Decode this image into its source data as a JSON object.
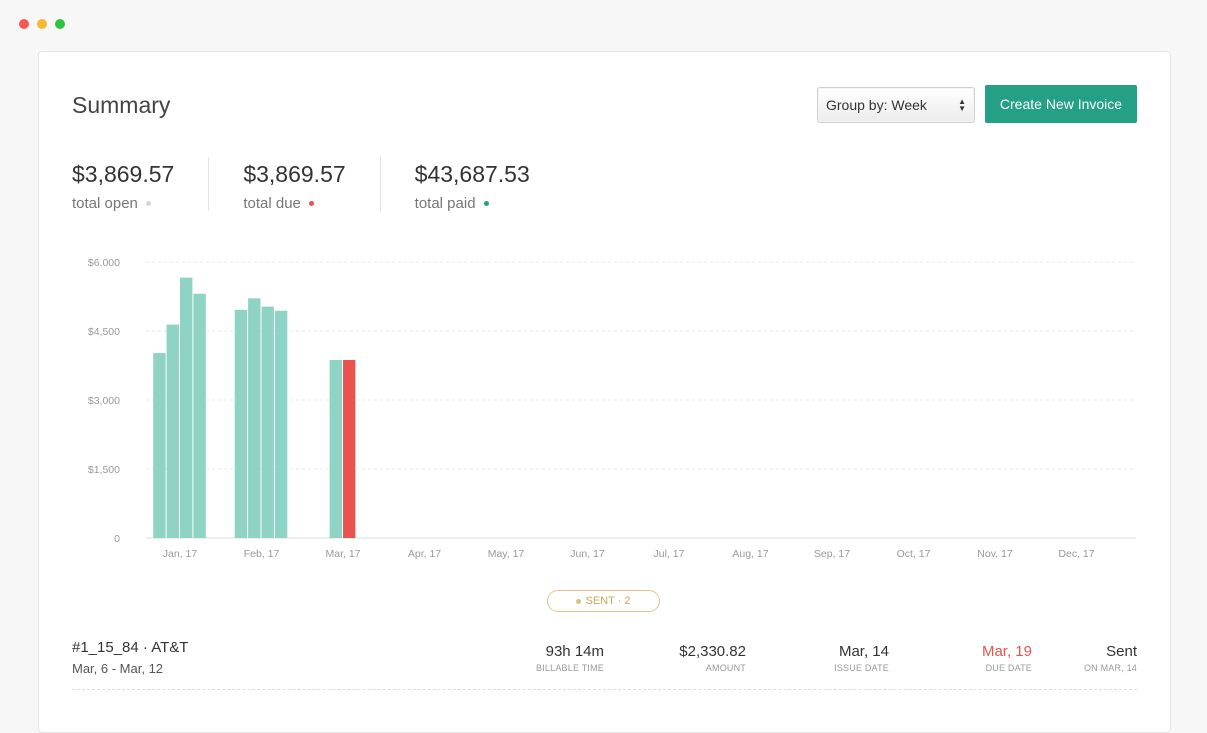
{
  "window": {
    "controls": [
      {
        "name": "close",
        "color": "#f25a4f"
      },
      {
        "name": "minimize",
        "color": "#f5b82e"
      },
      {
        "name": "maximize",
        "color": "#2dc53e"
      }
    ]
  },
  "header": {
    "title": "Summary",
    "group_by": "Group by: Week",
    "create_button": "Create New Invoice"
  },
  "stats": [
    {
      "amount": "$3,869.57",
      "label": "total open",
      "dot_color": "#d6d6d6"
    },
    {
      "amount": "$3,869.57",
      "label": "total due",
      "dot_color": "#e8534f"
    },
    {
      "amount": "$43,687.53",
      "label": "total paid",
      "dot_color": "#23a085"
    }
  ],
  "chart_data": {
    "type": "bar",
    "y_ticks": [
      "$6,000",
      "$4,500",
      "$3,000",
      "$1,500",
      "0"
    ],
    "ylim": [
      0,
      6000
    ],
    "x_ticks": [
      "Jan, 17",
      "Feb, 17",
      "Mar, 17",
      "Apr, 17",
      "May, 17",
      "Jun, 17",
      "Jul, 17",
      "Aug, 17",
      "Sep, 17",
      "Oct, 17",
      "Nov, 17",
      "Dec, 17"
    ],
    "grid": true,
    "colors": {
      "paid": "#8ed3c3",
      "due": "#e8534f"
    },
    "bars": [
      {
        "month": "Jan, 17",
        "week": 1,
        "value": 4020,
        "status": "paid"
      },
      {
        "month": "Jan, 17",
        "week": 2,
        "value": 4640,
        "status": "paid"
      },
      {
        "month": "Jan, 17",
        "week": 3,
        "value": 5660,
        "status": "paid"
      },
      {
        "month": "Jan, 17",
        "week": 4,
        "value": 5310,
        "status": "paid"
      },
      {
        "month": "Feb, 17",
        "week": 1,
        "value": 4960,
        "status": "paid"
      },
      {
        "month": "Feb, 17",
        "week": 2,
        "value": 5210,
        "status": "paid"
      },
      {
        "month": "Feb, 17",
        "week": 3,
        "value": 5030,
        "status": "paid"
      },
      {
        "month": "Feb, 17",
        "week": 4,
        "value": 4940,
        "status": "paid"
      },
      {
        "month": "Mar, 17",
        "week": 2,
        "value": 3870,
        "status": "paid"
      },
      {
        "month": "Mar, 17",
        "week": 3,
        "value": 3870,
        "status": "due"
      }
    ]
  },
  "badge": {
    "label": "SENT · 2"
  },
  "invoice_row": {
    "title": "#1_15_84 · AT&T",
    "range": "Mar, 6 - Mar, 12",
    "billable_time": {
      "value": "93h 14m",
      "label": "BILLABLE TIME"
    },
    "amount": {
      "value": "$2,330.82",
      "label": "AMOUNT"
    },
    "issue_date": {
      "value": "Mar, 14",
      "label": "ISSUE DATE"
    },
    "due_date": {
      "value": "Mar, 19",
      "label": "DUE DATE",
      "color": "#e8534f"
    },
    "status": {
      "value": "Sent",
      "label": "ON MAR, 14"
    }
  }
}
